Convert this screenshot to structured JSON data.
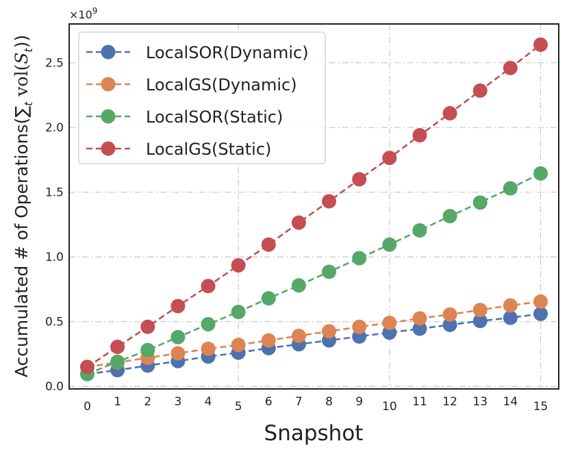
{
  "chart_data": {
    "type": "line",
    "title": "",
    "xlabel": "Snapshot",
    "ylabel": "Accumulated # of Operations(∑",
    "ylabel_sub": "t",
    "ylabel_tail": " vol(",
    "ylabel_script": "S",
    "ylabel_script_sub": "t",
    "ylabel_close": "))",
    "exponent_label": "×10",
    "exponent_power": "9",
    "x": [
      0,
      1,
      2,
      3,
      4,
      5,
      6,
      7,
      8,
      9,
      10,
      11,
      12,
      13,
      14,
      15
    ],
    "x_tick_labels": [
      "0",
      "1",
      "2",
      "3",
      "4",
      "5",
      "6",
      "7",
      "8",
      "9",
      "10",
      "11",
      "12",
      "13",
      "14",
      "15"
    ],
    "y_ticks": [
      0.0,
      0.5,
      1.0,
      1.5,
      2.0,
      2.5
    ],
    "y_tick_labels": [
      "0.0",
      "0.5",
      "1.0",
      "1.5",
      "2.0",
      "2.5"
    ],
    "xlim": [
      -0.6,
      15.6
    ],
    "ylim": [
      -0.02,
      2.8
    ],
    "y_scale": 1000000000,
    "grid": true,
    "legend_position": "top-left",
    "series": [
      {
        "name": "LocalSOR(Dynamic)",
        "color": "#4c72b0",
        "values": [
          0.095,
          0.125,
          0.16,
          0.195,
          0.23,
          0.26,
          0.295,
          0.325,
          0.355,
          0.385,
          0.415,
          0.445,
          0.475,
          0.505,
          0.53,
          0.56
        ]
      },
      {
        "name": "LocalGS(Dynamic)",
        "color": "#dd8452",
        "values": [
          0.15,
          0.185,
          0.22,
          0.255,
          0.29,
          0.32,
          0.355,
          0.39,
          0.425,
          0.46,
          0.49,
          0.525,
          0.555,
          0.59,
          0.625,
          0.655
        ]
      },
      {
        "name": "LocalSOR(Static)",
        "color": "#55a868",
        "values": [
          0.095,
          0.19,
          0.28,
          0.38,
          0.48,
          0.575,
          0.68,
          0.78,
          0.885,
          0.99,
          1.095,
          1.205,
          1.315,
          1.42,
          1.53,
          1.645
        ]
      },
      {
        "name": "LocalGS(Static)",
        "color": "#c44e52",
        "values": [
          0.15,
          0.305,
          0.46,
          0.62,
          0.775,
          0.935,
          1.095,
          1.265,
          1.43,
          1.6,
          1.765,
          1.94,
          2.11,
          2.285,
          2.46,
          2.64
        ]
      }
    ]
  }
}
